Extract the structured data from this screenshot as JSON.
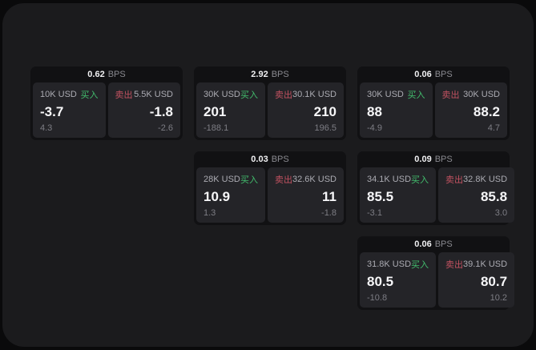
{
  "colors": {
    "buy_green": "#42bd6d",
    "sell_red": "#c25261"
  },
  "cards": [
    {
      "bps": "0.62",
      "unit": "BPS",
      "row": 1,
      "col": 1,
      "left": {
        "amount": "10K USD",
        "action": "买入",
        "value": "-3.7",
        "sub": "4.3"
      },
      "right": {
        "action": "卖出",
        "amount": "5.5K USD",
        "value": "-1.8",
        "sub": "-2.6"
      }
    },
    {
      "bps": "2.92",
      "unit": "BPS",
      "row": 1,
      "col": 2,
      "left": {
        "amount": "30K USD",
        "action": "买入",
        "value": "201",
        "sub": "-188.1"
      },
      "right": {
        "action": "卖出",
        "amount": "30.1K USD",
        "value": "210",
        "sub": "196.5"
      }
    },
    {
      "bps": "0.06",
      "unit": "BPS",
      "row": 1,
      "col": 3,
      "left": {
        "amount": "30K USD",
        "action": "买入",
        "value": "88",
        "sub": "-4.9"
      },
      "right": {
        "action": "卖出",
        "amount": "30K USD",
        "value": "88.2",
        "sub": "4.7"
      }
    },
    {
      "bps": "0.03",
      "unit": "BPS",
      "row": 2,
      "col": 2,
      "left": {
        "amount": "28K USD",
        "action": "买入",
        "value": "10.9",
        "sub": "1.3"
      },
      "right": {
        "action": "卖出",
        "amount": "32.6K USD",
        "value": "11",
        "sub": "-1.8"
      }
    },
    {
      "bps": "0.09",
      "unit": "BPS",
      "row": 2,
      "col": 3,
      "left": {
        "amount": "34.1K USD",
        "action": "买入",
        "value": "85.5",
        "sub": "-3.1"
      },
      "right": {
        "action": "卖出",
        "amount": "32.8K USD",
        "value": "85.8",
        "sub": "3.0"
      }
    },
    {
      "bps": "0.06",
      "unit": "BPS",
      "row": 3,
      "col": 3,
      "left": {
        "amount": "31.8K USD",
        "action": "买入",
        "value": "80.5",
        "sub": "-10.8"
      },
      "right": {
        "action": "卖出",
        "amount": "39.1K USD",
        "value": "80.7",
        "sub": "10.2"
      }
    }
  ]
}
